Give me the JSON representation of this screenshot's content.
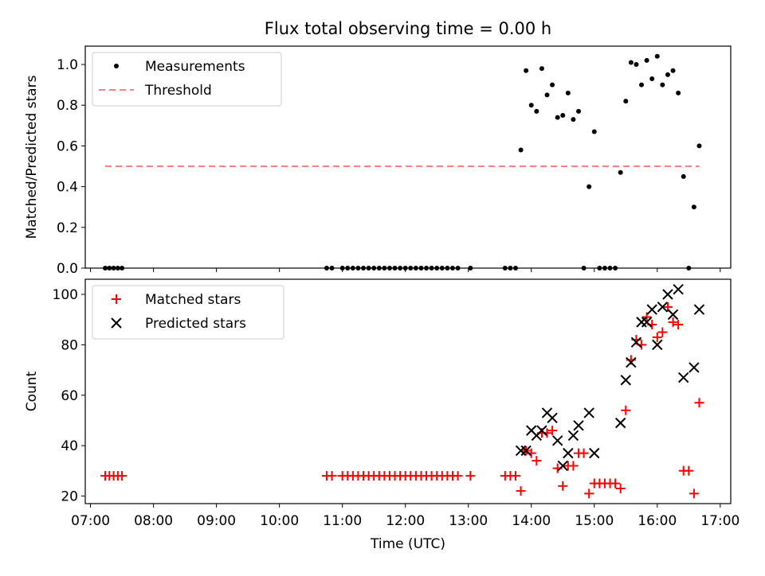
{
  "figure": {
    "title": "Flux total observing time = 0.00 h"
  },
  "chart_data": [
    {
      "type": "scatter",
      "title": "Flux total observing time = 0.00 h",
      "xlabel": "",
      "ylabel": "Matched/Predicted stars",
      "xlim": [
        "06:55",
        "17:10"
      ],
      "ylim": [
        0,
        1.09
      ],
      "yticks": [
        0.0,
        0.2,
        0.4,
        0.6,
        0.8,
        1.0
      ],
      "ytick_labels": [
        "0.0",
        "0.2",
        "0.4",
        "0.6",
        "0.8",
        "1.0"
      ],
      "xticks": [
        "07:00",
        "08:00",
        "09:00",
        "10:00",
        "11:00",
        "12:00",
        "13:00",
        "14:00",
        "15:00",
        "16:00",
        "17:00"
      ],
      "grid": false,
      "legend": {
        "location": "upper-left",
        "entries": [
          "Measurements",
          "Threshold"
        ]
      },
      "colors": {
        "measurements": "#000000",
        "threshold": "#ff7f7f"
      },
      "series": [
        {
          "name": "Measurements",
          "marker": "dot",
          "points": [
            [
              "07:14",
              0
            ],
            [
              "07:18",
              0
            ],
            [
              "07:22",
              0
            ],
            [
              "07:26",
              0
            ],
            [
              "07:30",
              0
            ],
            [
              "10:45",
              0
            ],
            [
              "10:50",
              0
            ],
            [
              "11:00",
              0
            ],
            [
              "11:05",
              0
            ],
            [
              "11:10",
              0
            ],
            [
              "11:15",
              0
            ],
            [
              "11:20",
              0
            ],
            [
              "11:25",
              0
            ],
            [
              "11:30",
              0
            ],
            [
              "11:35",
              0
            ],
            [
              "11:40",
              0
            ],
            [
              "11:45",
              0
            ],
            [
              "11:50",
              0
            ],
            [
              "11:55",
              0
            ],
            [
              "12:00",
              0
            ],
            [
              "12:05",
              0
            ],
            [
              "12:10",
              0
            ],
            [
              "12:15",
              0
            ],
            [
              "12:20",
              0
            ],
            [
              "12:25",
              0
            ],
            [
              "12:30",
              0
            ],
            [
              "12:35",
              0
            ],
            [
              "12:40",
              0
            ],
            [
              "12:45",
              0
            ],
            [
              "12:50",
              0
            ],
            [
              "13:02",
              0
            ],
            [
              "13:35",
              0
            ],
            [
              "13:40",
              0
            ],
            [
              "13:45",
              0
            ],
            [
              "13:50",
              0.58
            ],
            [
              "13:55",
              0.97
            ],
            [
              "14:00",
              0.8
            ],
            [
              "14:05",
              0.77
            ],
            [
              "14:10",
              0.98
            ],
            [
              "14:15",
              0.85
            ],
            [
              "14:20",
              0.9
            ],
            [
              "14:25",
              0.74
            ],
            [
              "14:30",
              0.75
            ],
            [
              "14:35",
              0.86
            ],
            [
              "14:40",
              0.73
            ],
            [
              "14:45",
              0.77
            ],
            [
              "14:50",
              0
            ],
            [
              "14:55",
              0.4
            ],
            [
              "15:00",
              0.67
            ],
            [
              "15:05",
              0
            ],
            [
              "15:10",
              0
            ],
            [
              "15:15",
              0
            ],
            [
              "15:20",
              0
            ],
            [
              "15:25",
              0.47
            ],
            [
              "15:30",
              0.82
            ],
            [
              "15:35",
              1.01
            ],
            [
              "15:40",
              1.0
            ],
            [
              "15:45",
              0.9
            ],
            [
              "15:50",
              1.02
            ],
            [
              "15:55",
              0.93
            ],
            [
              "16:00",
              1.04
            ],
            [
              "16:05",
              0.9
            ],
            [
              "16:10",
              0.95
            ],
            [
              "16:15",
              0.97
            ],
            [
              "16:20",
              0.86
            ],
            [
              "16:25",
              0.45
            ],
            [
              "16:30",
              0
            ],
            [
              "16:35",
              0.3
            ],
            [
              "16:40",
              0.6
            ]
          ]
        },
        {
          "name": "Threshold",
          "marker": "dashed-line",
          "points": [
            [
              "07:14",
              0.5
            ],
            [
              "16:40",
              0.5
            ]
          ]
        }
      ]
    },
    {
      "type": "scatter",
      "title": "",
      "xlabel": "Time (UTC)",
      "ylabel": "Count",
      "xlim": [
        "06:55",
        "17:10"
      ],
      "ylim": [
        17,
        106
      ],
      "yticks": [
        20,
        40,
        60,
        80,
        100
      ],
      "ytick_labels": [
        "20",
        "40",
        "60",
        "80",
        "100"
      ],
      "xticks": [
        "07:00",
        "08:00",
        "09:00",
        "10:00",
        "11:00",
        "12:00",
        "13:00",
        "14:00",
        "15:00",
        "16:00",
        "17:00"
      ],
      "xtick_labels": [
        "07:00",
        "08:00",
        "09:00",
        "10:00",
        "11:00",
        "12:00",
        "13:00",
        "14:00",
        "15:00",
        "16:00",
        "17:00"
      ],
      "grid": false,
      "legend": {
        "location": "upper-left",
        "entries": [
          "Matched stars",
          "Predicted stars"
        ]
      },
      "colors": {
        "matched": "#ff0000",
        "predicted": "#000000"
      },
      "series": [
        {
          "name": "Matched stars",
          "marker": "plus",
          "points": [
            [
              "07:14",
              28
            ],
            [
              "07:18",
              28
            ],
            [
              "07:22",
              28
            ],
            [
              "07:26",
              28
            ],
            [
              "07:30",
              28
            ],
            [
              "10:45",
              28
            ],
            [
              "10:50",
              28
            ],
            [
              "11:00",
              28
            ],
            [
              "11:05",
              28
            ],
            [
              "11:10",
              28
            ],
            [
              "11:15",
              28
            ],
            [
              "11:20",
              28
            ],
            [
              "11:25",
              28
            ],
            [
              "11:30",
              28
            ],
            [
              "11:35",
              28
            ],
            [
              "11:40",
              28
            ],
            [
              "11:45",
              28
            ],
            [
              "11:50",
              28
            ],
            [
              "11:55",
              28
            ],
            [
              "12:00",
              28
            ],
            [
              "12:05",
              28
            ],
            [
              "12:10",
              28
            ],
            [
              "12:15",
              28
            ],
            [
              "12:20",
              28
            ],
            [
              "12:25",
              28
            ],
            [
              "12:30",
              28
            ],
            [
              "12:35",
              28
            ],
            [
              "12:40",
              28
            ],
            [
              "12:45",
              28
            ],
            [
              "12:50",
              28
            ],
            [
              "13:02",
              28
            ],
            [
              "13:35",
              28
            ],
            [
              "13:40",
              28
            ],
            [
              "13:45",
              28
            ],
            [
              "13:50",
              22
            ],
            [
              "13:55",
              38
            ],
            [
              "14:00",
              37
            ],
            [
              "14:05",
              34
            ],
            [
              "14:10",
              45
            ],
            [
              "14:15",
              45
            ],
            [
              "14:20",
              46
            ],
            [
              "14:25",
              31
            ],
            [
              "14:30",
              24
            ],
            [
              "14:35",
              32
            ],
            [
              "14:40",
              32
            ],
            [
              "14:45",
              37
            ],
            [
              "14:50",
              37
            ],
            [
              "14:55",
              21
            ],
            [
              "15:00",
              25
            ],
            [
              "15:05",
              25
            ],
            [
              "15:10",
              25
            ],
            [
              "15:15",
              25
            ],
            [
              "15:20",
              25
            ],
            [
              "15:25",
              23
            ],
            [
              "15:30",
              54
            ],
            [
              "15:35",
              74
            ],
            [
              "15:40",
              82
            ],
            [
              "15:45",
              80
            ],
            [
              "15:50",
              91
            ],
            [
              "15:55",
              88
            ],
            [
              "16:00",
              83
            ],
            [
              "16:05",
              85
            ],
            [
              "16:10",
              95
            ],
            [
              "16:15",
              89
            ],
            [
              "16:20",
              88
            ],
            [
              "16:25",
              30
            ],
            [
              "16:30",
              30
            ],
            [
              "16:35",
              21
            ],
            [
              "16:40",
              57
            ]
          ]
        },
        {
          "name": "Predicted stars",
          "marker": "x",
          "points": [
            [
              "13:50",
              38
            ],
            [
              "13:55",
              38
            ],
            [
              "14:00",
              46
            ],
            [
              "14:05",
              44
            ],
            [
              "14:10",
              46
            ],
            [
              "14:15",
              53
            ],
            [
              "14:20",
              51
            ],
            [
              "14:25",
              42
            ],
            [
              "14:30",
              32
            ],
            [
              "14:35",
              37
            ],
            [
              "14:40",
              44
            ],
            [
              "14:45",
              48
            ],
            [
              "14:55",
              53
            ],
            [
              "15:00",
              37
            ],
            [
              "15:25",
              49
            ],
            [
              "15:30",
              66
            ],
            [
              "15:35",
              73
            ],
            [
              "15:40",
              81
            ],
            [
              "15:45",
              89
            ],
            [
              "15:50",
              89
            ],
            [
              "15:55",
              94
            ],
            [
              "16:00",
              80
            ],
            [
              "16:05",
              95
            ],
            [
              "16:10",
              100
            ],
            [
              "16:15",
              92
            ],
            [
              "16:20",
              102
            ],
            [
              "16:25",
              67
            ],
            [
              "16:35",
              71
            ],
            [
              "16:40",
              94
            ]
          ]
        }
      ]
    }
  ]
}
